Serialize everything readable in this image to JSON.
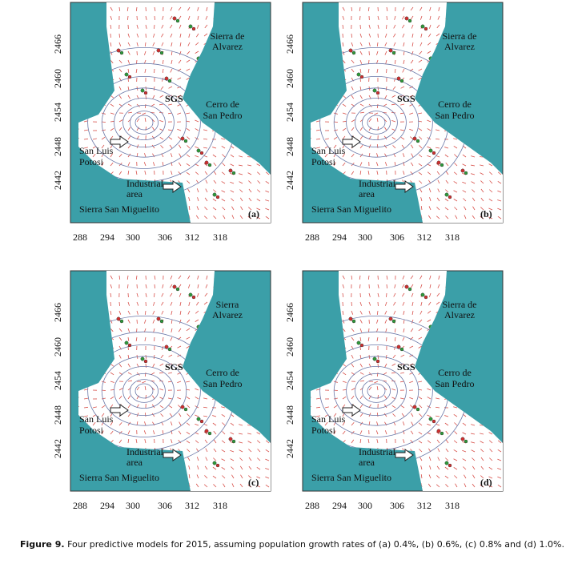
{
  "panels": [
    {
      "label": "(a)",
      "sierra_alvarez": [
        "Sierra de",
        "Alvarez"
      ],
      "sgs": "SGS",
      "cerro": [
        "Cerro de",
        "San Pedro"
      ],
      "slp": [
        "San Luis",
        "Potosi"
      ],
      "industrial": [
        "Industrial",
        "area"
      ],
      "miguelito": "Sierra San Miguelito",
      "y_ticks": [
        "2466",
        "2460",
        "2454",
        "2448",
        "2442"
      ],
      "x_ticks": [
        "288",
        "294",
        "300",
        "306",
        "312",
        "318"
      ]
    },
    {
      "label": "(b)",
      "sierra_alvarez": [
        "Sierra de",
        "Alvarez"
      ],
      "sgs": "SGS",
      "cerro": [
        "Cerro de",
        "San Pedro"
      ],
      "slp": [
        "San Luis",
        "Potosi"
      ],
      "industrial": [
        "Industrial",
        "area"
      ],
      "miguelito": "Sierra San Miguelito",
      "y_ticks": [
        "2466",
        "2460",
        "2454",
        "2448",
        "2442"
      ],
      "x_ticks": [
        "288",
        "294",
        "300",
        "306",
        "312",
        "318"
      ]
    },
    {
      "label": "(c)",
      "sierra_alvarez": [
        "Sierra",
        "Alvarez"
      ],
      "sgs": "SGS",
      "cerro": [
        "Cerro de",
        "San Pedro"
      ],
      "slp": [
        "San Luis",
        "Potosi"
      ],
      "industrial": [
        "Industrial",
        "area"
      ],
      "miguelito": "Sierra San Miguelito",
      "y_ticks": [
        "2466",
        "2460",
        "2454",
        "2448",
        "2442"
      ],
      "x_ticks": [
        "288",
        "294",
        "300",
        "306",
        "312",
        "318"
      ]
    },
    {
      "label": "(d)",
      "sierra_alvarez": [
        "Sierra de",
        "Alvarez"
      ],
      "sgs": "SGS",
      "cerro": [
        "Cerro de",
        "San Pedro"
      ],
      "slp": [
        "San Luis",
        "Potosi"
      ],
      "industrial": [
        "Industrial",
        "area"
      ],
      "miguelito": "Sierra San Miguelito",
      "y_ticks": [
        "2466",
        "2460",
        "2454",
        "2448",
        "2442"
      ],
      "x_ticks": [
        "288",
        "294",
        "300",
        "306",
        "312",
        "318"
      ]
    }
  ],
  "caption": {
    "figure": "Figure 9.",
    "text": "Four predictive models for 2015, assuming population growth rates of (a) 0.4%, (b) 0.6%, (c) 0.8% and (d) 1.0%."
  }
}
